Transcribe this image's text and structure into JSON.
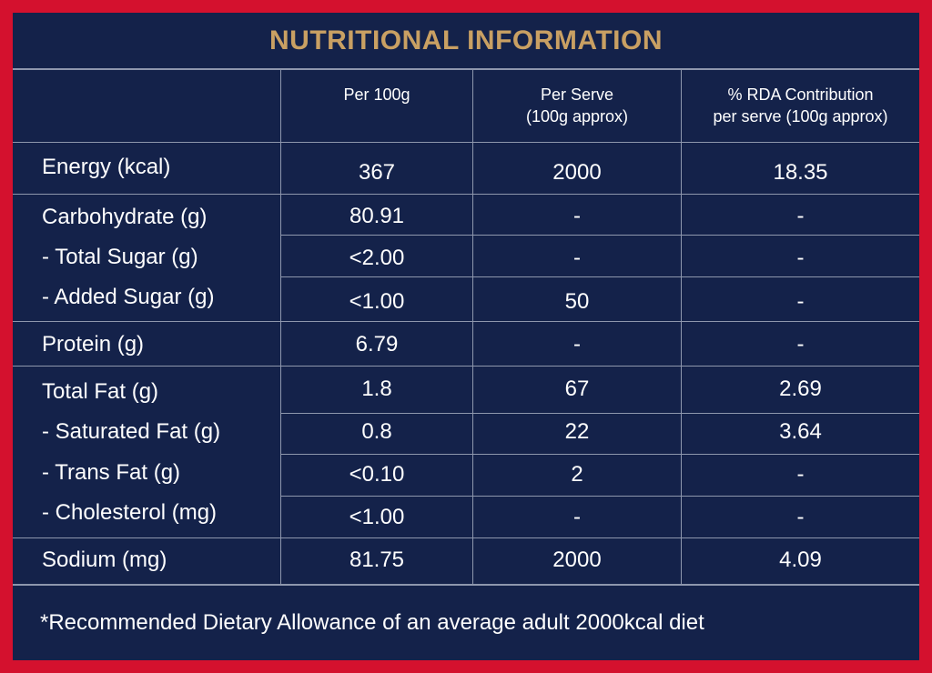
{
  "title": "NUTRITIONAL INFORMATION",
  "columns": {
    "per100": "Per 100g",
    "perServe": "Per Serve\n(100g approx)",
    "rda": "% RDA Contribution\nper serve (100g approx)"
  },
  "rows": [
    {
      "label": "Energy (kcal)",
      "per100": "367",
      "perServe": "2000",
      "rda": "18.35"
    },
    {
      "label": "Carbohydrate (g)",
      "per100": "80.91",
      "perServe": "-",
      "rda": "-"
    },
    {
      "label": "- Total Sugar (g)",
      "per100": "<2.00",
      "perServe": "-",
      "rda": "-"
    },
    {
      "label": "- Added Sugar (g)",
      "per100": "<1.00",
      "perServe": "50",
      "rda": "-"
    },
    {
      "label": "Protein (g)",
      "per100": "6.79",
      "perServe": "-",
      "rda": "-"
    },
    {
      "label": "Total Fat (g)",
      "per100": "1.8",
      "perServe": "67",
      "rda": "2.69"
    },
    {
      "label": "- Saturated Fat (g)",
      "per100": "0.8",
      "perServe": "22",
      "rda": "3.64"
    },
    {
      "label": "- Trans Fat (g)",
      "per100": "<0.10",
      "perServe": "2",
      "rda": "-"
    },
    {
      "label": "- Cholesterol (mg)",
      "per100": "<1.00",
      "perServe": "-",
      "rda": "-"
    },
    {
      "label": "Sodium (mg)",
      "per100": "81.75",
      "perServe": "2000",
      "rda": "4.09"
    }
  ],
  "footnote": "*Recommended Dietary Allowance of an average adult 2000kcal diet",
  "colors": {
    "background": "#14224a",
    "border": "#d4112e",
    "title": "#c9a063",
    "grid": "#8e97ad"
  }
}
